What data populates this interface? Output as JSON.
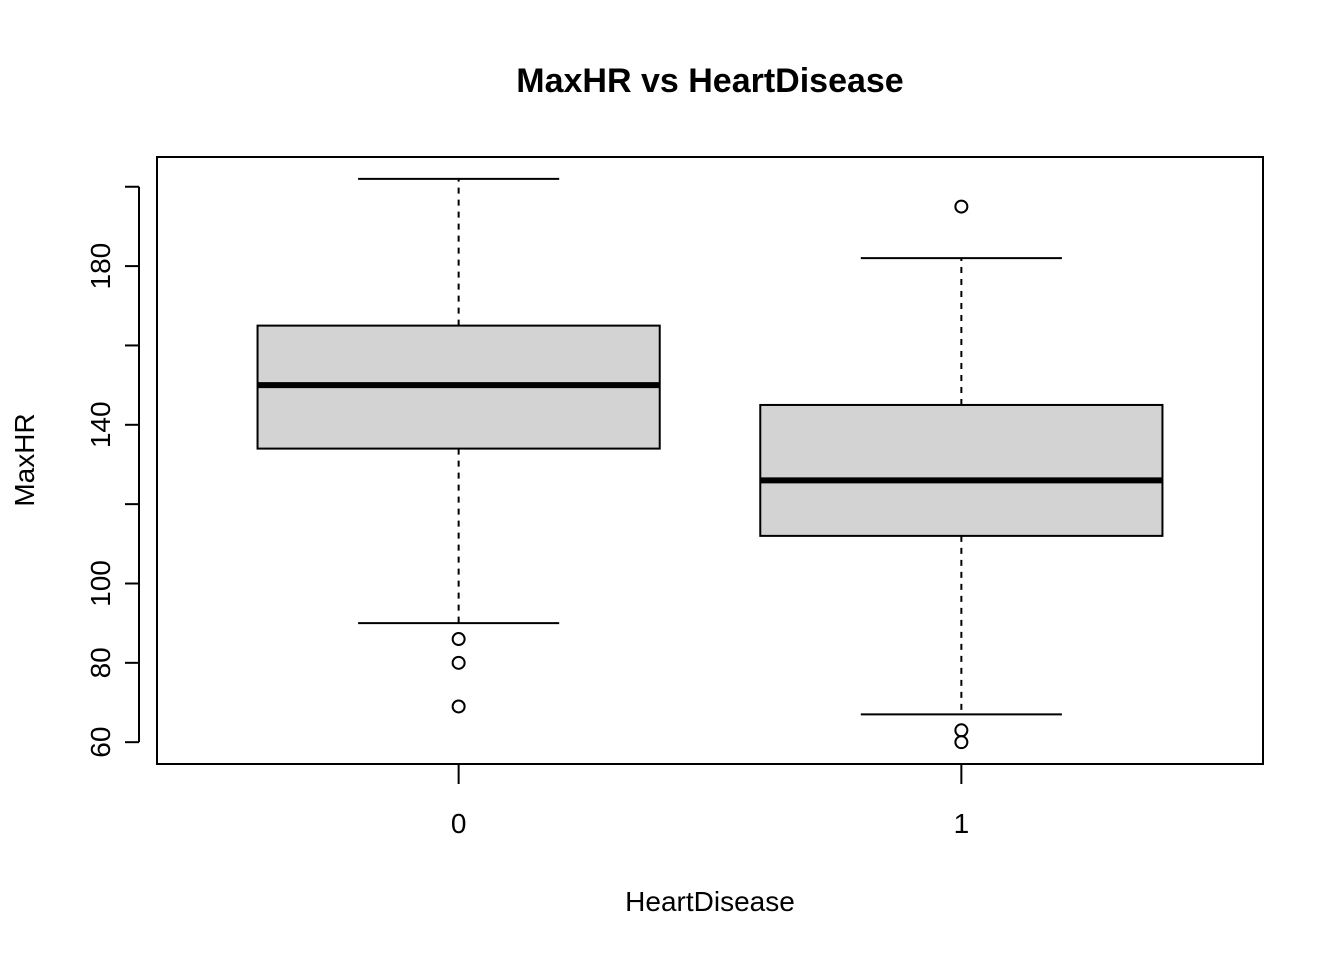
{
  "chart_data": {
    "type": "boxplot",
    "title": "MaxHR vs HeartDisease",
    "xlabel": "HeartDisease",
    "ylabel": "MaxHR",
    "categories": [
      "0",
      "1"
    ],
    "ylim": [
      54.5,
      207.5
    ],
    "y_ticks": [
      60,
      80,
      100,
      120,
      140,
      160,
      180,
      200
    ],
    "y_tick_labels": [
      "60",
      "80",
      "100",
      "",
      "140",
      "",
      "180",
      ""
    ],
    "grid": false,
    "box_fill": "#d3d3d3",
    "boxes": [
      {
        "category": "0",
        "whisker_low": 90,
        "q1": 134,
        "median": 150,
        "q3": 165,
        "whisker_high": 202,
        "outliers": [
          69,
          80,
          86
        ]
      },
      {
        "category": "1",
        "whisker_low": 67,
        "q1": 112,
        "median": 126,
        "q3": 145,
        "whisker_high": 182,
        "outliers": [
          60,
          63,
          195
        ]
      }
    ]
  }
}
